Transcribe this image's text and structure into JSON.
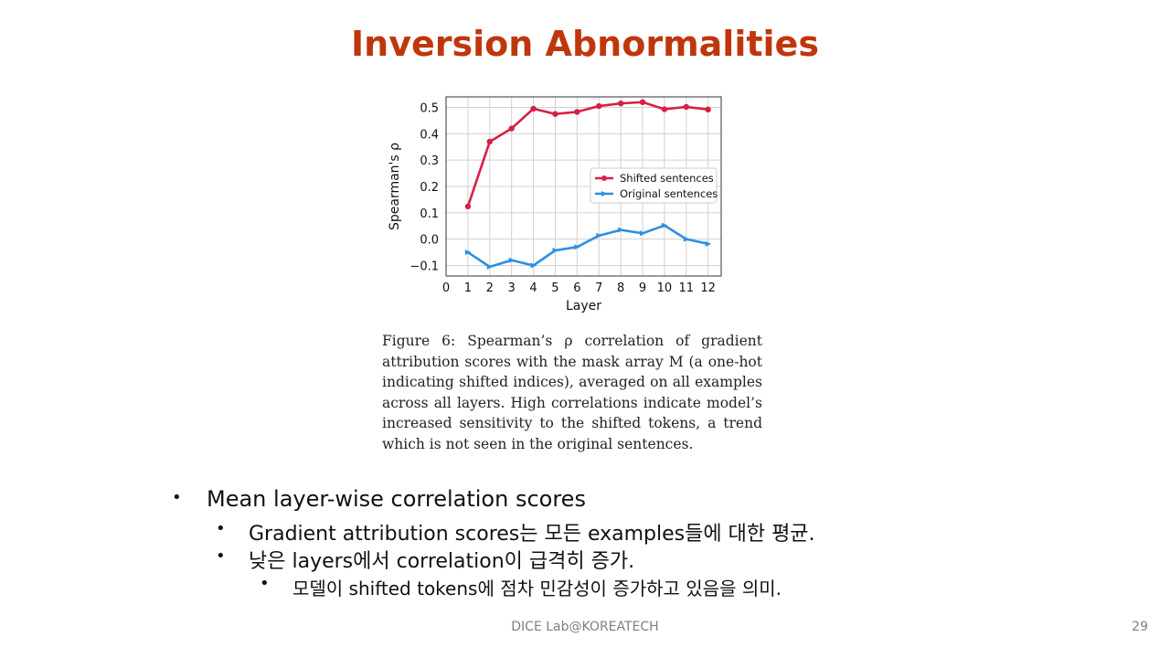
{
  "slide": {
    "title": "Inversion Abnormalities",
    "caption": "Figure 6: Spearman’s ρ correlation of gradient attribution scores with the mask array M (a one-hot indicating shifted indices), averaged on all examples across all layers. High correlations indicate model’s increased sensitivity to the shifted tokens, a trend which is not seen in the original sentences.",
    "bullets": {
      "b1": "Mean layer-wise correlation scores",
      "b2": "Gradient attribution scores는 모든 examples들에 대한 평균.",
      "b3": "낮은 layers에서 correlation이 급격히 증가.",
      "b4": "모델이 shifted tokens에 점차 민감성이 증가하고 있음을 의미."
    },
    "bullet_symbol": "•",
    "footer": "DICE Lab@KOREATECH",
    "page_number": "29"
  },
  "chart_data": {
    "type": "line",
    "xlabel": "Layer",
    "ylabel": "Spearman's ρ",
    "xlim": [
      0,
      12.6
    ],
    "ylim": [
      -0.14,
      0.54
    ],
    "xticks": [
      "0",
      "1",
      "2",
      "3",
      "4",
      "5",
      "6",
      "7",
      "8",
      "9",
      "10",
      "11",
      "12"
    ],
    "yticks": [
      "0.5",
      "0.4",
      "0.3",
      "0.2",
      "0.1",
      "0.0",
      "−0.1"
    ],
    "grid": true,
    "legend_position": "center-right",
    "x": [
      1,
      2,
      3,
      4,
      5,
      6,
      7,
      8,
      9,
      10,
      11,
      12
    ],
    "series": [
      {
        "name": "Shifted sentences",
        "color": "#d62046",
        "marker": "circle",
        "values": [
          0.124,
          0.37,
          0.42,
          0.495,
          0.475,
          0.483,
          0.505,
          0.515,
          0.52,
          0.493,
          0.502,
          0.492
        ]
      },
      {
        "name": "Original sentences",
        "color": "#2d8fe0",
        "marker": "triangle",
        "values": [
          -0.05,
          -0.105,
          -0.08,
          -0.1,
          -0.043,
          -0.03,
          0.013,
          0.035,
          0.022,
          0.052,
          0.0,
          -0.018
        ]
      }
    ]
  }
}
